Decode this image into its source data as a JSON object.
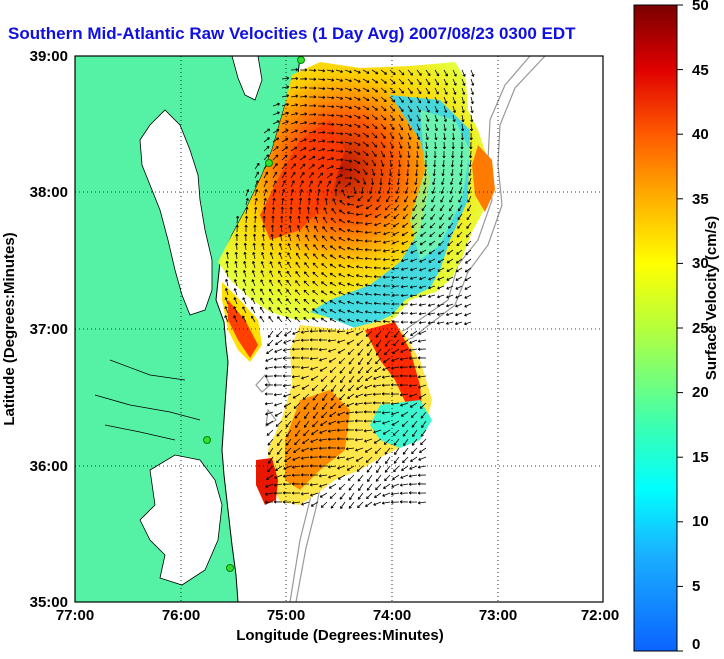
{
  "title": "Southern Mid-Atlantic Raw Velocities (1 Day Avg) 2007/08/23 0300 EDT",
  "map": {
    "xlabel": "Longitude (Degrees:Minutes)",
    "ylabel": "Latitude (Degrees:Minutes)",
    "x_ticks": [
      "77:00",
      "76:00",
      "75:00",
      "74:00",
      "73:00",
      "72:00"
    ],
    "y_ticks": [
      "39:00",
      "38:00",
      "37:00",
      "36:00",
      "35:00"
    ],
    "xlim_deg_west": [
      77,
      72
    ],
    "ylim_deg_north": [
      35,
      39
    ],
    "grid": "dotted",
    "land_color": "#55f2a6",
    "water_color": "#ffffff",
    "vector_color": "#000000",
    "station_color": "#33dd33"
  },
  "colorbar": {
    "label": "Surface Velocity (cm/s)",
    "ticks": [
      "0",
      "5",
      "10",
      "15",
      "20",
      "25",
      "30",
      "35",
      "40",
      "45",
      "50"
    ],
    "range": [
      0,
      50
    ],
    "colormap": "jet"
  }
}
